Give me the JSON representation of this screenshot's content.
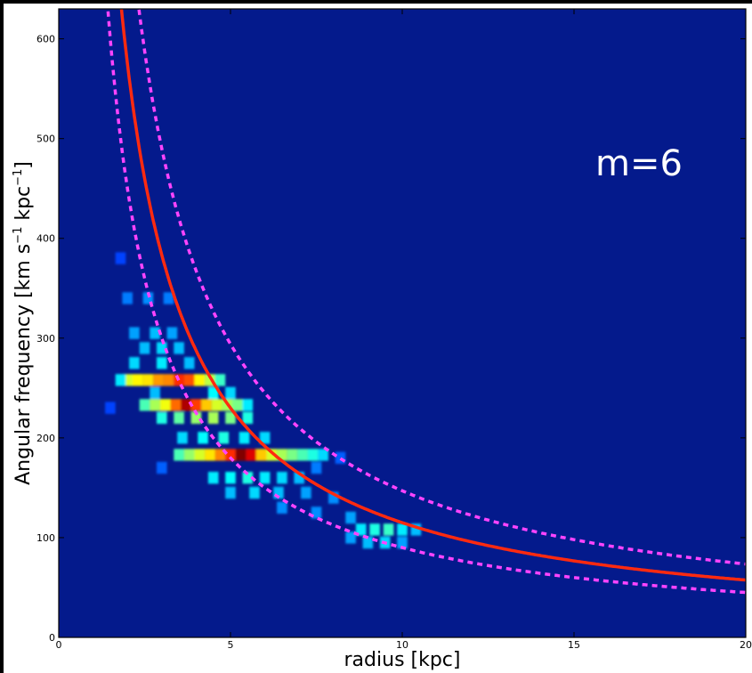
{
  "chart_data": {
    "type": "heatmap",
    "title": "",
    "xlabel": "radius [kpc]",
    "ylabel_main": "Angular frequency [km s",
    "ylabel_sup1": "−1",
    "ylabel_mid": " kpc",
    "ylabel_sup2": "−1",
    "ylabel_end": "]",
    "xlim": [
      0,
      20
    ],
    "ylim": [
      0,
      630
    ],
    "x_ticks": [
      "0",
      "5",
      "10",
      "15",
      "20"
    ],
    "y_ticks": [
      "0",
      "100",
      "200",
      "300",
      "400",
      "500",
      "600"
    ],
    "annotation": "m=6",
    "colors": {
      "background": "#041a8c",
      "solid_curve": "#ff2a10",
      "dashed_curve": "#ff44ff"
    },
    "curves": {
      "solid": {
        "formula": "omega = 1150 / r",
        "x": [
          0.6,
          1,
          2,
          3,
          5,
          10,
          15,
          20
        ],
        "y": [
          630,
          1150,
          575,
          383,
          230,
          115,
          77,
          58
        ]
      },
      "dashed_upper": {
        "formula": "omega = 1470 / r",
        "x": [
          0.95,
          2,
          5,
          10,
          20
        ],
        "y": [
          630,
          735,
          294,
          147,
          73
        ]
      },
      "dashed_lower": {
        "formula": "omega = 900 / r",
        "x": [
          0.25,
          1,
          5,
          10,
          20
        ],
        "y": [
          630,
          900,
          180,
          90,
          45
        ]
      }
    },
    "heatmap_cells": [
      {
        "x": 2.0,
        "y": 258,
        "v": 0.55
      },
      {
        "x": 2.3,
        "y": 258,
        "v": 0.6
      },
      {
        "x": 2.6,
        "y": 258,
        "v": 0.62
      },
      {
        "x": 2.9,
        "y": 258,
        "v": 0.7
      },
      {
        "x": 3.2,
        "y": 258,
        "v": 0.72
      },
      {
        "x": 3.5,
        "y": 258,
        "v": 0.82
      },
      {
        "x": 3.8,
        "y": 258,
        "v": 0.78
      },
      {
        "x": 4.1,
        "y": 258,
        "v": 0.6
      },
      {
        "x": 4.4,
        "y": 258,
        "v": 0.52
      },
      {
        "x": 4.7,
        "y": 258,
        "v": 0.38
      },
      {
        "x": 1.8,
        "y": 258,
        "v": 0.3
      },
      {
        "x": 2.5,
        "y": 233,
        "v": 0.4
      },
      {
        "x": 2.8,
        "y": 233,
        "v": 0.5
      },
      {
        "x": 3.1,
        "y": 233,
        "v": 0.58
      },
      {
        "x": 3.4,
        "y": 233,
        "v": 0.75
      },
      {
        "x": 3.7,
        "y": 233,
        "v": 0.95
      },
      {
        "x": 4.0,
        "y": 233,
        "v": 0.8
      },
      {
        "x": 4.3,
        "y": 233,
        "v": 0.65
      },
      {
        "x": 4.6,
        "y": 233,
        "v": 0.55
      },
      {
        "x": 4.9,
        "y": 233,
        "v": 0.5
      },
      {
        "x": 5.2,
        "y": 233,
        "v": 0.45
      },
      {
        "x": 5.5,
        "y": 233,
        "v": 0.3
      },
      {
        "x": 3.0,
        "y": 220,
        "v": 0.35
      },
      {
        "x": 3.5,
        "y": 220,
        "v": 0.42
      },
      {
        "x": 4.0,
        "y": 220,
        "v": 0.48
      },
      {
        "x": 4.5,
        "y": 220,
        "v": 0.5
      },
      {
        "x": 5.0,
        "y": 220,
        "v": 0.45
      },
      {
        "x": 5.5,
        "y": 220,
        "v": 0.35
      },
      {
        "x": 3.5,
        "y": 183,
        "v": 0.4
      },
      {
        "x": 3.8,
        "y": 183,
        "v": 0.48
      },
      {
        "x": 4.1,
        "y": 183,
        "v": 0.55
      },
      {
        "x": 4.4,
        "y": 183,
        "v": 0.62
      },
      {
        "x": 4.7,
        "y": 183,
        "v": 0.72
      },
      {
        "x": 5.0,
        "y": 183,
        "v": 0.82
      },
      {
        "x": 5.3,
        "y": 183,
        "v": 1.0
      },
      {
        "x": 5.6,
        "y": 183,
        "v": 0.9
      },
      {
        "x": 5.9,
        "y": 183,
        "v": 0.65
      },
      {
        "x": 6.2,
        "y": 183,
        "v": 0.55
      },
      {
        "x": 6.5,
        "y": 183,
        "v": 0.5
      },
      {
        "x": 6.8,
        "y": 183,
        "v": 0.45
      },
      {
        "x": 7.1,
        "y": 183,
        "v": 0.4
      },
      {
        "x": 7.4,
        "y": 183,
        "v": 0.35
      },
      {
        "x": 7.7,
        "y": 183,
        "v": 0.28
      },
      {
        "x": 2.5,
        "y": 290,
        "v": 0.25
      },
      {
        "x": 3.0,
        "y": 290,
        "v": 0.28
      },
      {
        "x": 3.5,
        "y": 290,
        "v": 0.25
      },
      {
        "x": 2.2,
        "y": 305,
        "v": 0.22
      },
      {
        "x": 2.8,
        "y": 305,
        "v": 0.25
      },
      {
        "x": 3.3,
        "y": 305,
        "v": 0.22
      },
      {
        "x": 2.0,
        "y": 340,
        "v": 0.18
      },
      {
        "x": 2.6,
        "y": 340,
        "v": 0.2
      },
      {
        "x": 3.2,
        "y": 340,
        "v": 0.18
      },
      {
        "x": 2.2,
        "y": 275,
        "v": 0.28
      },
      {
        "x": 3.0,
        "y": 275,
        "v": 0.3
      },
      {
        "x": 3.8,
        "y": 275,
        "v": 0.25
      },
      {
        "x": 4.5,
        "y": 245,
        "v": 0.32
      },
      {
        "x": 5.0,
        "y": 245,
        "v": 0.28
      },
      {
        "x": 2.8,
        "y": 245,
        "v": 0.25
      },
      {
        "x": 4.2,
        "y": 200,
        "v": 0.32
      },
      {
        "x": 4.8,
        "y": 200,
        "v": 0.35
      },
      {
        "x": 5.4,
        "y": 200,
        "v": 0.3
      },
      {
        "x": 6.0,
        "y": 200,
        "v": 0.28
      },
      {
        "x": 3.6,
        "y": 200,
        "v": 0.28
      },
      {
        "x": 4.5,
        "y": 160,
        "v": 0.3
      },
      {
        "x": 5.0,
        "y": 160,
        "v": 0.32
      },
      {
        "x": 5.5,
        "y": 160,
        "v": 0.35
      },
      {
        "x": 6.0,
        "y": 160,
        "v": 0.3
      },
      {
        "x": 6.5,
        "y": 160,
        "v": 0.28
      },
      {
        "x": 7.0,
        "y": 160,
        "v": 0.25
      },
      {
        "x": 5.0,
        "y": 145,
        "v": 0.25
      },
      {
        "x": 5.7,
        "y": 145,
        "v": 0.28
      },
      {
        "x": 6.4,
        "y": 145,
        "v": 0.25
      },
      {
        "x": 7.2,
        "y": 145,
        "v": 0.22
      },
      {
        "x": 8.0,
        "y": 140,
        "v": 0.2
      },
      {
        "x": 6.5,
        "y": 130,
        "v": 0.2
      },
      {
        "x": 7.5,
        "y": 125,
        "v": 0.2
      },
      {
        "x": 8.5,
        "y": 120,
        "v": 0.22
      },
      {
        "x": 8.8,
        "y": 108,
        "v": 0.3
      },
      {
        "x": 9.2,
        "y": 108,
        "v": 0.35
      },
      {
        "x": 9.6,
        "y": 108,
        "v": 0.38
      },
      {
        "x": 10.0,
        "y": 108,
        "v": 0.3
      },
      {
        "x": 10.4,
        "y": 108,
        "v": 0.25
      },
      {
        "x": 9.0,
        "y": 95,
        "v": 0.25
      },
      {
        "x": 9.5,
        "y": 95,
        "v": 0.28
      },
      {
        "x": 10.0,
        "y": 95,
        "v": 0.22
      },
      {
        "x": 8.5,
        "y": 100,
        "v": 0.22
      },
      {
        "x": 1.8,
        "y": 380,
        "v": 0.12
      },
      {
        "x": 1.5,
        "y": 230,
        "v": 0.12
      },
      {
        "x": 7.5,
        "y": 170,
        "v": 0.18
      },
      {
        "x": 8.2,
        "y": 180,
        "v": 0.15
      },
      {
        "x": 3.0,
        "y": 170,
        "v": 0.15
      }
    ]
  }
}
